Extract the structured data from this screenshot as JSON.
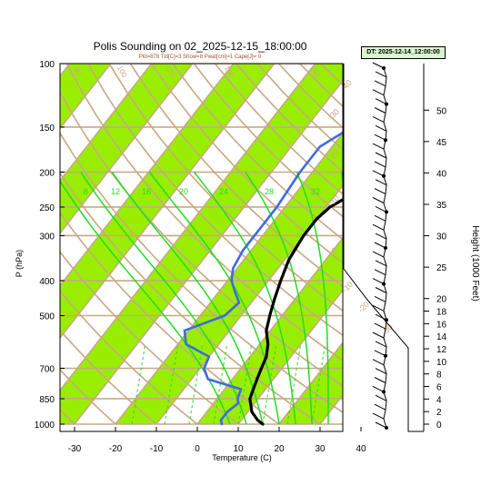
{
  "chart_data": {
    "type": "line",
    "title": "Polis Sounding on 02_2025-12-15_18:00:00",
    "subtitle": "Pld=878 Tld[C]=3 Show=8 Pwat[cm]=1 Cape[J]= 0",
    "datetime_label": "DT: 2025-12-14_12:00:00",
    "xlabel": "Temperature (C)",
    "ylabel": "P (hPa)",
    "y2label": "Height (1000 Feet)",
    "xlim": [
      -33,
      44
    ],
    "ylim": [
      1030,
      100
    ],
    "x_ticks": [
      "-30",
      "-20",
      "-10",
      "0",
      "10",
      "20",
      "30",
      "40"
    ],
    "y_ticks": [
      "100",
      "150",
      "200",
      "250",
      "300",
      "400",
      "500",
      "700",
      "850",
      "1000"
    ],
    "y2_ticks": [
      "0",
      "2",
      "4",
      "6",
      "8",
      "10",
      "12",
      "14",
      "16",
      "18",
      "20",
      "25",
      "30",
      "35",
      "40",
      "45",
      "50"
    ],
    "isotherm_labels": [
      "-30",
      "-20",
      "-10",
      "0",
      "10",
      "20",
      "30",
      "40"
    ],
    "dry_adiabat_labels": [
      "80",
      "100",
      "120",
      "140",
      "160"
    ],
    "mixing_ratio_labels": [
      "8",
      "12",
      "16",
      "20",
      "24",
      "28",
      "32"
    ],
    "series": [
      {
        "name": "Temperature",
        "color": "#000000",
        "points": [
          [
            16,
            1000
          ],
          [
            14,
            975
          ],
          [
            11,
            925
          ],
          [
            8,
            850
          ],
          [
            7,
            800
          ],
          [
            6,
            750
          ],
          [
            5,
            700
          ],
          [
            4,
            650
          ],
          [
            2,
            600
          ],
          [
            -1,
            550
          ],
          [
            -3,
            500
          ],
          [
            -5,
            450
          ],
          [
            -7,
            400
          ],
          [
            -9,
            350
          ],
          [
            -10,
            300
          ],
          [
            -10,
            270
          ],
          [
            -9,
            250
          ],
          [
            -6,
            230
          ],
          [
            -3,
            210
          ],
          [
            1,
            190
          ],
          [
            3,
            170
          ],
          [
            4,
            160
          ],
          [
            4,
            150
          ],
          [
            7,
            135
          ],
          [
            9,
            120
          ],
          [
            11,
            110
          ],
          [
            12,
            100
          ]
        ]
      },
      {
        "name": "Dewpoint",
        "color": "#4169e1",
        "points": [
          [
            6,
            1000
          ],
          [
            5,
            975
          ],
          [
            5,
            925
          ],
          [
            6,
            875
          ],
          [
            5,
            850
          ],
          [
            4,
            800
          ],
          [
            -6,
            750
          ],
          [
            -9,
            700
          ],
          [
            -10,
            650
          ],
          [
            -18,
            600
          ],
          [
            -21,
            550
          ],
          [
            -14,
            500
          ],
          [
            -13,
            460
          ],
          [
            -16,
            430
          ],
          [
            -19,
            400
          ],
          [
            -21,
            370
          ],
          [
            -22,
            330
          ],
          [
            -22,
            300
          ],
          [
            -22,
            250
          ],
          [
            -23,
            200
          ],
          [
            -23,
            170
          ],
          [
            -20,
            155
          ],
          [
            -14,
            130
          ],
          [
            -6,
            112
          ],
          [
            -1,
            100
          ]
        ]
      }
    ],
    "grid": true,
    "legend": "none"
  },
  "colors": {
    "band": "#99ee00",
    "isotherm": "#c8a882",
    "mixing_ratio": "#22dd22",
    "temperature": "#000000",
    "dewpoint": "#4169e1"
  }
}
